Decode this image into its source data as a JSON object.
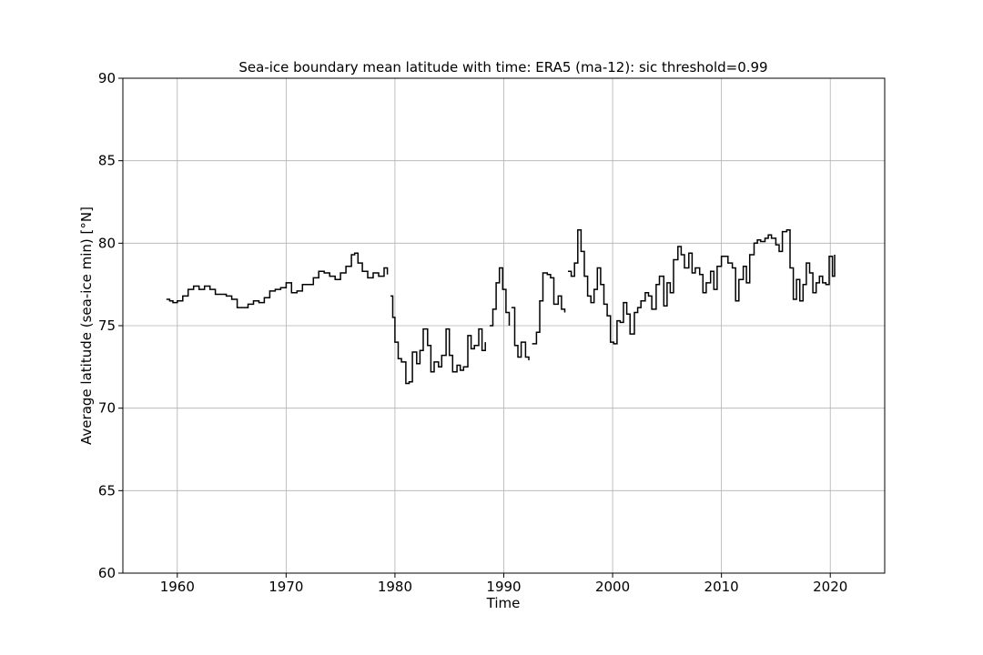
{
  "chart_data": {
    "type": "line",
    "title": "Sea-ice boundary mean latitude with time: ERA5 (ma-12): sic threshold=0.99",
    "xlabel": "Time",
    "ylabel": "Average latitude (sea-ice min) [°N]",
    "xlim": [
      1955,
      2025
    ],
    "ylim": [
      60,
      90
    ],
    "xticks": [
      1960,
      1970,
      1980,
      1990,
      2000,
      2010,
      2020
    ],
    "yticks": [
      60,
      65,
      70,
      75,
      80,
      85,
      90
    ],
    "grid": true,
    "color": "#000000",
    "segments": [
      {
        "x": [
          1959.0,
          1959.3,
          1959.6,
          1960.0,
          1960.5,
          1961.0,
          1961.5,
          1962.0,
          1962.5,
          1963.0,
          1963.5,
          1964.0,
          1964.5,
          1965.0,
          1965.5,
          1966.0,
          1966.5,
          1967.0,
          1967.5,
          1968.0,
          1968.5,
          1969.0,
          1969.5,
          1970.0,
          1970.5,
          1971.0,
          1971.5,
          1972.0,
          1972.5,
          1973.0,
          1973.5,
          1974.0,
          1974.5,
          1975.0,
          1975.5,
          1976.0,
          1976.3,
          1976.6,
          1977.0,
          1977.5,
          1978.0,
          1978.5,
          1979.0,
          1979.3
        ],
        "y": [
          76.6,
          76.5,
          76.4,
          76.5,
          76.8,
          77.2,
          77.4,
          77.2,
          77.4,
          77.2,
          76.9,
          76.9,
          76.8,
          76.6,
          76.1,
          76.1,
          76.3,
          76.5,
          76.4,
          76.7,
          77.1,
          77.2,
          77.3,
          77.6,
          77.0,
          77.1,
          77.5,
          77.5,
          77.9,
          78.3,
          78.2,
          78.0,
          77.8,
          78.2,
          78.6,
          79.3,
          79.4,
          78.8,
          78.3,
          77.9,
          78.2,
          78.0,
          78.5,
          78.1
        ]
      },
      {
        "x": [
          1979.6,
          1979.8,
          1980.0,
          1980.3,
          1980.6,
          1981.0,
          1981.3,
          1981.6,
          1982.0,
          1982.3,
          1982.6,
          1983.0,
          1983.3,
          1983.6,
          1984.0,
          1984.3,
          1984.7,
          1985.0,
          1985.3,
          1985.7,
          1986.0,
          1986.3,
          1986.7,
          1987.0,
          1987.3,
          1987.7,
          1988.0,
          1988.3
        ],
        "y": [
          76.8,
          75.5,
          74.0,
          73.0,
          72.8,
          71.5,
          71.6,
          73.4,
          72.7,
          73.5,
          74.8,
          73.8,
          72.2,
          72.8,
          72.5,
          73.2,
          74.8,
          73.2,
          72.2,
          72.6,
          72.3,
          72.5,
          74.4,
          73.6,
          73.8,
          74.8,
          73.5,
          74.0
        ]
      },
      {
        "x": [
          1988.7,
          1989.0,
          1989.3,
          1989.6,
          1989.9,
          1990.2,
          1990.5
        ],
        "y": [
          75.0,
          76.0,
          77.6,
          78.5,
          77.2,
          75.8,
          75.0
        ]
      },
      {
        "x": [
          1990.7,
          1991.0,
          1991.3,
          1991.6,
          1992.0,
          1992.3
        ],
        "y": [
          76.1,
          73.8,
          73.1,
          74.0,
          73.1,
          72.9
        ]
      },
      {
        "x": [
          1992.6,
          1993.0,
          1993.3,
          1993.6,
          1994.0,
          1994.3,
          1994.6,
          1995.0,
          1995.3,
          1995.6
        ],
        "y": [
          73.9,
          74.6,
          76.5,
          78.2,
          78.1,
          77.9,
          76.3,
          76.8,
          76.0,
          75.8
        ]
      },
      {
        "x": [
          1995.9,
          1996.2,
          1996.5,
          1996.8,
          1997.1,
          1997.4,
          1997.7,
          1998.0,
          1998.3,
          1998.6,
          1998.9,
          1999.2,
          1999.5,
          1999.8,
          2000.1,
          2000.4,
          2000.7,
          2001.0,
          2001.3,
          2001.6,
          2002.0,
          2002.3,
          2002.6,
          2003.0,
          2003.3,
          2003.6,
          2004.0,
          2004.3,
          2004.7,
          2005.0,
          2005.3,
          2005.6,
          2006.0,
          2006.3,
          2006.6,
          2007.0,
          2007.3,
          2007.6,
          2008.0,
          2008.3,
          2008.6,
          2009.0,
          2009.3,
          2009.6,
          2010.0,
          2010.3,
          2010.6,
          2011.0,
          2011.3,
          2011.6,
          2012.0,
          2012.3,
          2012.6,
          2013.0,
          2013.3,
          2013.6,
          2014.0,
          2014.3,
          2014.6,
          2015.0,
          2015.3,
          2015.6,
          2016.0,
          2016.3,
          2016.6,
          2016.9,
          2017.2,
          2017.5,
          2017.8,
          2018.1,
          2018.4,
          2018.7,
          2019.0,
          2019.3,
          2019.6,
          2019.9,
          2020.2,
          2020.4
        ],
        "y": [
          78.3,
          78.0,
          78.8,
          80.8,
          79.5,
          78.0,
          76.8,
          76.4,
          77.2,
          78.5,
          77.5,
          76.3,
          75.6,
          74.0,
          73.9,
          75.3,
          75.2,
          76.4,
          75.7,
          74.5,
          75.8,
          76.1,
          76.5,
          77.0,
          76.8,
          76.0,
          77.5,
          78.0,
          76.2,
          77.6,
          77.0,
          79.0,
          79.8,
          79.3,
          78.5,
          79.4,
          78.2,
          78.5,
          78.1,
          77.0,
          77.6,
          78.3,
          77.2,
          78.6,
          79.2,
          79.2,
          78.8,
          78.5,
          76.5,
          77.8,
          78.6,
          77.6,
          79.3,
          80.0,
          80.2,
          80.1,
          80.3,
          80.5,
          80.3,
          79.9,
          79.5,
          80.7,
          80.8,
          78.5,
          76.6,
          77.8,
          76.5,
          77.5,
          78.8,
          78.2,
          77.0,
          77.6,
          78.0,
          77.6,
          77.5,
          79.2,
          78.0,
          79.3
        ]
      }
    ]
  }
}
